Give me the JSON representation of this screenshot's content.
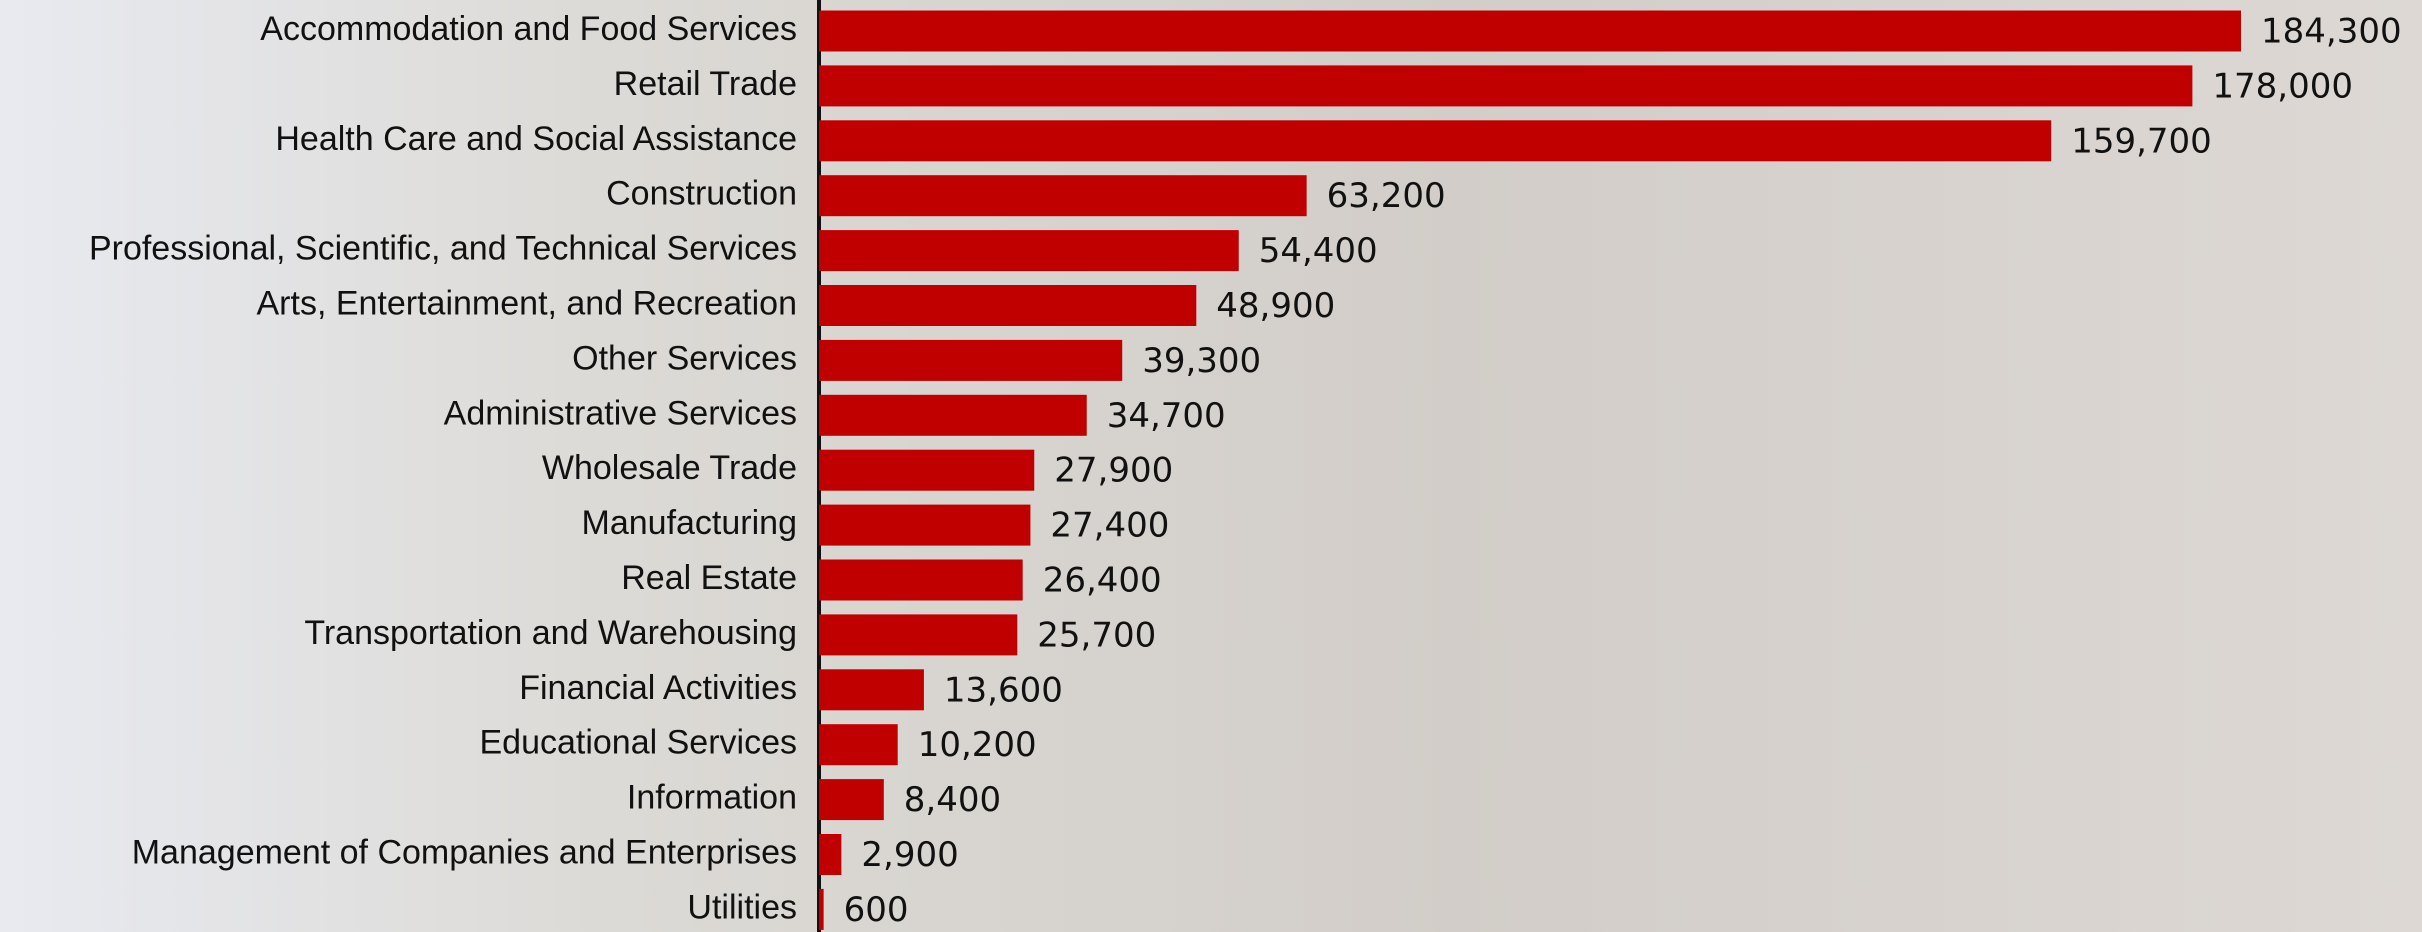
{
  "chart_data": {
    "type": "bar",
    "orientation": "horizontal",
    "color": "#c00000",
    "categories": [
      "Accommodation and Food Services",
      "Retail Trade",
      "Health Care and Social Assistance",
      "Construction",
      "Professional, Scientific, and Technical Services",
      "Arts, Entertainment, and Recreation",
      "Other Services",
      "Administrative Services",
      "Wholesale Trade",
      "Manufacturing",
      "Real Estate",
      "Transportation and Warehousing",
      "Financial Activities",
      "Educational Services",
      "Information",
      "Management of Companies and Enterprises",
      "Utilities"
    ],
    "values": [
      184300,
      178000,
      159700,
      63200,
      54400,
      48900,
      39300,
      34700,
      27900,
      27400,
      26400,
      25700,
      13600,
      10200,
      8400,
      2900,
      600
    ],
    "value_labels": [
      "184,300",
      "178,000",
      "159,700",
      "63,200",
      "54,400",
      "48,900",
      "39,300",
      "34,700",
      "27,900",
      "27,400",
      "26,400",
      "25,700",
      "13,600",
      "10,200",
      "8,400",
      "2,900",
      "600"
    ]
  }
}
